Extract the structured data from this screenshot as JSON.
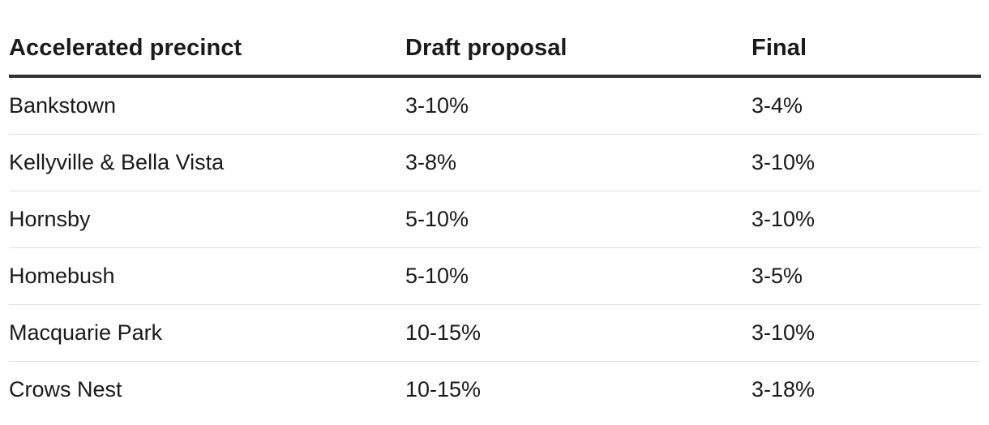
{
  "table": {
    "headers": [
      "Accelerated precinct",
      "Draft proposal",
      "Final"
    ],
    "rows": [
      [
        "Bankstown",
        "3-10%",
        "3-4%"
      ],
      [
        "Kellyville & Bella Vista",
        "3-8%",
        "3-10%"
      ],
      [
        "Hornsby",
        "5-10%",
        "3-10%"
      ],
      [
        "Homebush",
        "5-10%",
        "3-5%"
      ],
      [
        "Macquarie Park",
        "10-15%",
        "3-10%"
      ],
      [
        "Crows Nest",
        "10-15%",
        "3-18%"
      ]
    ]
  }
}
